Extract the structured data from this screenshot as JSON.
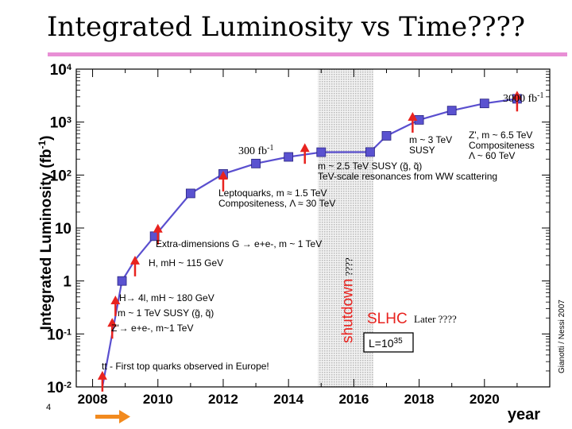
{
  "slide": {
    "title": "Integrated Luminosity vs Time????",
    "page_number": "4",
    "colors": {
      "title_rule": "#e88fd5",
      "curve": "#5a4fcf",
      "marker": "#5a52d0",
      "arrow": "#e8231f",
      "shutdown_band": "#c9c9c9",
      "orange_arrow": "#f28a1e"
    }
  },
  "chart_data": {
    "type": "line",
    "ylabel": "Integrated Luminosity (fb",
    "ylabel_sup": "-1",
    "ylabel_close": ")",
    "xlabel": "year",
    "y_scale": "log",
    "ylim": [
      0.01,
      10000
    ],
    "xlim": [
      2007.5,
      2022
    ],
    "y_ticks": [
      {
        "value": 0.01,
        "base": "10",
        "exp": "-2"
      },
      {
        "value": 0.1,
        "base": "10",
        "exp": "-1"
      },
      {
        "value": 1,
        "base": "1",
        "exp": ""
      },
      {
        "value": 10,
        "base": "10",
        "exp": ""
      },
      {
        "value": 100,
        "base": "10",
        "exp": "2"
      },
      {
        "value": 1000,
        "base": "10",
        "exp": "3"
      },
      {
        "value": 10000,
        "base": "10",
        "exp": "4"
      }
    ],
    "x_ticks": [
      "2008",
      "2010",
      "2012",
      "2014",
      "2016",
      "2018",
      "2020"
    ],
    "series": [
      {
        "name": "Integrated luminosity",
        "points": [
          [
            2008.3,
            0.01
          ],
          [
            2008.6,
            0.1
          ],
          [
            2008.9,
            1
          ],
          [
            2009.3,
            2.5
          ],
          [
            2009.9,
            7
          ],
          [
            2011,
            45
          ],
          [
            2012,
            105
          ],
          [
            2013,
            165
          ],
          [
            2014,
            220
          ],
          [
            2015,
            270
          ],
          [
            2016.5,
            272
          ],
          [
            2017,
            550
          ],
          [
            2018,
            1100
          ],
          [
            2019,
            1650
          ],
          [
            2020,
            2250
          ],
          [
            2021,
            2750
          ]
        ],
        "markers": [
          [
            2008.9,
            1
          ],
          [
            2009.9,
            7
          ],
          [
            2011,
            45
          ],
          [
            2012,
            105
          ],
          [
            2013,
            165
          ],
          [
            2014,
            220
          ],
          [
            2015,
            270
          ],
          [
            2016.5,
            272
          ],
          [
            2017,
            550
          ],
          [
            2018,
            1100
          ],
          [
            2019,
            1650
          ],
          [
            2020,
            2250
          ],
          [
            2021,
            2750
          ]
        ]
      }
    ],
    "shutdown_band": {
      "x_start": 2014.9,
      "x_end": 2016.6,
      "label": "shutdown",
      "label_suffix": "????"
    },
    "arrows": [
      {
        "x": 2008.3,
        "y_tip": 0.02
      },
      {
        "x": 2008.6,
        "y_tip": 0.2
      },
      {
        "x": 2008.7,
        "y_tip": 0.53
      },
      {
        "x": 2009.3,
        "y_tip": 3
      },
      {
        "x": 2010,
        "y_tip": 12
      },
      {
        "x": 2012,
        "y_tip": 120
      },
      {
        "x": 2014.5,
        "y_tip": 400
      },
      {
        "x": 2017.8,
        "y_tip": 1550
      },
      {
        "x": 2021,
        "y_tip": 3900
      }
    ],
    "annotations": {
      "top_quark": "tt - First top quarks observed in Europe!",
      "zprime_1tev": "Z'→ e+e-, m~1 TeV",
      "susy_1tev": "m ~ 1 TeV SUSY (g̃, q̃)",
      "higgs_4l": "H→ 4l, mH ~ 180 GeV",
      "higgs_115": "H, mH ~ 115 GeV",
      "extra_dim": "Extra-dimensions G → e+e-, m ~ 1 TeV",
      "leptoquarks_1": "Leptoquarks, m ≈ 1.5 TeV",
      "leptoquarks_2": "Compositeness, Λ ≈ 30 TeV",
      "susy_25_1": "m ~ 2.5 TeV SUSY (g̃, q̃)",
      "susy_25_2": "TeV-scale resonances from WW scattering",
      "susy_3tev_1": "m ~ 3 TeV",
      "susy_3tev_2": "SUSY",
      "zprime_65_1": "Z', m ~ 6.5 TeV",
      "zprime_65_2": "Compositeness",
      "zprime_65_3": "Λ ~ 60 TeV",
      "fb300": "300 fb",
      "fb300_sup": "-1",
      "fb3000": "3000 fb",
      "fb3000_sup": "-1",
      "slhc": "SLHC",
      "slhc_later": "Later ????",
      "luminosity_box": "L=10",
      "luminosity_box_sup": "35",
      "credit": "Gianotti / Nessi 2007"
    }
  }
}
